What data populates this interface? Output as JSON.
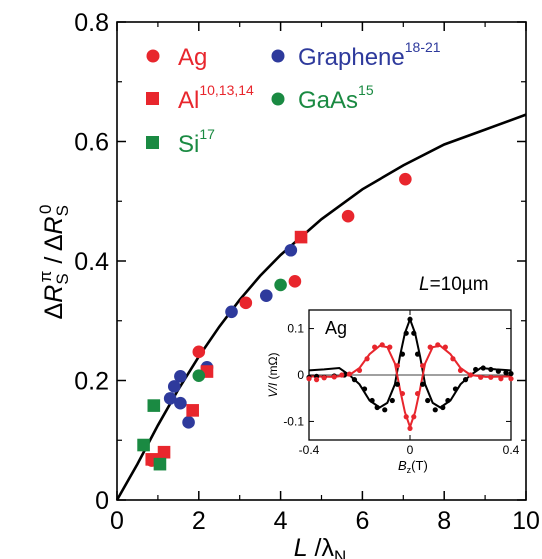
{
  "chart_data": {
    "type": "scatter",
    "xlim": [
      0,
      10
    ],
    "ylim": [
      0,
      0.8
    ],
    "x_ticks": [
      0,
      2,
      4,
      6,
      8,
      10
    ],
    "y_ticks": [
      0,
      0.2,
      0.4,
      0.6,
      0.8
    ],
    "x_tick_labels": [
      "0",
      "2",
      "4",
      "6",
      "8",
      "10"
    ],
    "y_tick_labels": [
      "0",
      "0.2",
      "0.4",
      "0.6",
      "0.8"
    ],
    "xlabel_italic": "L",
    "xlabel_rest": " /λ",
    "xlabel_sub": "N",
    "ylabel_delta": "Δ",
    "ylabel_R": "R",
    "ylabel_sub": "S",
    "ylabel_sup_num": "π",
    "ylabel_sep": " / Δ",
    "ylabel_sup_den": "0",
    "colors": {
      "red": "#e8262d",
      "blue": "#2e3a9c",
      "green": "#1a8a42",
      "black": "#000000"
    },
    "legend": [
      {
        "name": "Ag",
        "sup": "",
        "marker": "circle",
        "color": "#e8262d"
      },
      {
        "name": "Graphene",
        "sup": "18-21",
        "marker": "circle",
        "color": "#2e3a9c"
      },
      {
        "name": "Al",
        "sup": "10,13,14",
        "marker": "square",
        "color": "#e8262d"
      },
      {
        "name": "GaAs",
        "sup": "15",
        "marker": "circle",
        "color": "#1a8a42"
      },
      {
        "name": "Si",
        "sup": "17",
        "marker": "square",
        "color": "#1a8a42"
      }
    ],
    "series": [
      {
        "marker": "circle",
        "color": "#e8262d",
        "points": [
          [
            0.85,
            0.066
          ],
          [
            2.0,
            0.248
          ],
          [
            3.15,
            0.33
          ],
          [
            4.35,
            0.366
          ],
          [
            5.65,
            0.475
          ],
          [
            7.05,
            0.537
          ]
        ]
      },
      {
        "marker": "circle",
        "color": "#2e3a9c",
        "points": [
          [
            1.3,
            0.17
          ],
          [
            1.4,
            0.19
          ],
          [
            1.55,
            0.207
          ],
          [
            1.55,
            0.162
          ],
          [
            1.75,
            0.13
          ],
          [
            2.2,
            0.222
          ],
          [
            2.8,
            0.315
          ],
          [
            3.65,
            0.342
          ],
          [
            4.25,
            0.418
          ]
        ]
      },
      {
        "marker": "square",
        "color": "#e8262d",
        "points": [
          [
            0.85,
            0.068
          ],
          [
            1.15,
            0.08
          ],
          [
            1.85,
            0.15
          ],
          [
            2.2,
            0.215
          ],
          [
            4.5,
            0.44
          ]
        ]
      },
      {
        "marker": "circle",
        "color": "#1a8a42",
        "points": [
          [
            2.0,
            0.208
          ],
          [
            4.0,
            0.36
          ]
        ]
      },
      {
        "marker": "square",
        "color": "#1a8a42",
        "points": [
          [
            0.65,
            0.092
          ],
          [
            0.9,
            0.158
          ],
          [
            1.05,
            0.06
          ]
        ]
      }
    ],
    "fit_curve": {
      "color": "#000000",
      "points": [
        [
          0,
          0
        ],
        [
          0.5,
          0.06
        ],
        [
          1,
          0.125
        ],
        [
          1.5,
          0.185
        ],
        [
          2,
          0.24
        ],
        [
          2.5,
          0.29
        ],
        [
          3,
          0.335
        ],
        [
          3.5,
          0.375
        ],
        [
          4,
          0.41
        ],
        [
          5,
          0.47
        ],
        [
          6,
          0.52
        ],
        [
          7,
          0.56
        ],
        [
          8,
          0.595
        ],
        [
          9,
          0.62
        ],
        [
          10,
          0.645
        ]
      ]
    },
    "inset": {
      "annotation_italic": "L",
      "annotation_rest": "=10µm",
      "label": "Ag",
      "xlim": [
        -0.4,
        0.4
      ],
      "ylim": [
        -0.14,
        0.14
      ],
      "x_ticks": [
        -0.4,
        0,
        0.4
      ],
      "x_tick_labels": [
        "-0.4",
        "0",
        "0.4"
      ],
      "y_ticks": [
        -0.1,
        0,
        0.1
      ],
      "y_tick_labels": [
        "-0.1",
        "0",
        "0.1"
      ],
      "xlabel_main": "B",
      "xlabel_sub": "z",
      "xlabel_unit": "(T)",
      "ylabel_italic": "V/I",
      "ylabel_unit": " (mΩ)",
      "black_points": [
        [
          -0.4,
          -0.005
        ],
        [
          -0.37,
          -0.003
        ],
        [
          -0.34,
          -0.005
        ],
        [
          -0.3,
          -0.002
        ],
        [
          -0.26,
          0.0
        ],
        [
          -0.22,
          -0.01
        ],
        [
          -0.18,
          -0.03
        ],
        [
          -0.15,
          -0.055
        ],
        [
          -0.13,
          -0.07
        ],
        [
          -0.1,
          -0.075
        ],
        [
          -0.07,
          -0.055
        ],
        [
          -0.05,
          -0.02
        ],
        [
          -0.03,
          0.045
        ],
        [
          -0.015,
          0.09
        ],
        [
          0.0,
          0.12
        ],
        [
          0.015,
          0.09
        ],
        [
          0.03,
          0.045
        ],
        [
          0.05,
          -0.02
        ],
        [
          0.07,
          -0.055
        ],
        [
          0.1,
          -0.075
        ],
        [
          0.13,
          -0.07
        ],
        [
          0.15,
          -0.055
        ],
        [
          0.18,
          -0.03
        ],
        [
          0.22,
          -0.01
        ],
        [
          0.26,
          0.012
        ],
        [
          0.29,
          0.015
        ],
        [
          0.32,
          0.012
        ],
        [
          0.35,
          0.008
        ],
        [
          0.38,
          0.005
        ],
        [
          0.4,
          0.003
        ]
      ],
      "red_points": [
        [
          -0.4,
          -0.008
        ],
        [
          -0.37,
          -0.01
        ],
        [
          -0.34,
          -0.006
        ],
        [
          -0.3,
          -0.004
        ],
        [
          -0.27,
          0.0
        ],
        [
          -0.24,
          0.002
        ],
        [
          -0.2,
          0.01
        ],
        [
          -0.17,
          0.035
        ],
        [
          -0.14,
          0.06
        ],
        [
          -0.11,
          0.065
        ],
        [
          -0.08,
          0.06
        ],
        [
          -0.05,
          0.02
        ],
        [
          -0.03,
          -0.04
        ],
        [
          -0.015,
          -0.09
        ],
        [
          0.0,
          -0.115
        ],
        [
          0.015,
          -0.09
        ],
        [
          0.03,
          -0.04
        ],
        [
          0.05,
          0.02
        ],
        [
          0.08,
          0.06
        ],
        [
          0.11,
          0.065
        ],
        [
          0.14,
          0.06
        ],
        [
          0.17,
          0.035
        ],
        [
          0.2,
          0.01
        ],
        [
          0.24,
          0.0
        ],
        [
          0.28,
          -0.005
        ],
        [
          0.32,
          -0.005
        ],
        [
          0.36,
          -0.008
        ],
        [
          0.4,
          -0.008
        ]
      ],
      "black_curve": [
        [
          -0.4,
          0.01
        ],
        [
          -0.34,
          0.012
        ],
        [
          -0.28,
          0.015
        ],
        [
          -0.24,
          0.0
        ],
        [
          -0.2,
          -0.02
        ],
        [
          -0.16,
          -0.055
        ],
        [
          -0.12,
          -0.07
        ],
        [
          -0.09,
          -0.06
        ],
        [
          -0.06,
          -0.02
        ],
        [
          -0.04,
          0.04
        ],
        [
          -0.02,
          0.09
        ],
        [
          0.0,
          0.12
        ],
        [
          0.02,
          0.09
        ],
        [
          0.04,
          0.04
        ],
        [
          0.06,
          -0.02
        ],
        [
          0.09,
          -0.06
        ],
        [
          0.12,
          -0.07
        ],
        [
          0.16,
          -0.055
        ],
        [
          0.2,
          -0.02
        ],
        [
          0.24,
          0.0
        ],
        [
          0.28,
          0.015
        ],
        [
          0.34,
          0.012
        ],
        [
          0.4,
          0.01
        ]
      ],
      "red_curve": [
        [
          -0.4,
          -0.003
        ],
        [
          -0.3,
          -0.004
        ],
        [
          -0.24,
          0.0
        ],
        [
          -0.2,
          0.015
        ],
        [
          -0.16,
          0.045
        ],
        [
          -0.12,
          0.063
        ],
        [
          -0.09,
          0.06
        ],
        [
          -0.06,
          0.025
        ],
        [
          -0.04,
          -0.03
        ],
        [
          -0.02,
          -0.08
        ],
        [
          0.0,
          -0.112
        ],
        [
          0.02,
          -0.08
        ],
        [
          0.04,
          -0.03
        ],
        [
          0.06,
          0.025
        ],
        [
          0.09,
          0.06
        ],
        [
          0.12,
          0.063
        ],
        [
          0.16,
          0.045
        ],
        [
          0.2,
          0.015
        ],
        [
          0.24,
          0.0
        ],
        [
          0.3,
          -0.004
        ],
        [
          0.4,
          -0.003
        ]
      ]
    }
  }
}
